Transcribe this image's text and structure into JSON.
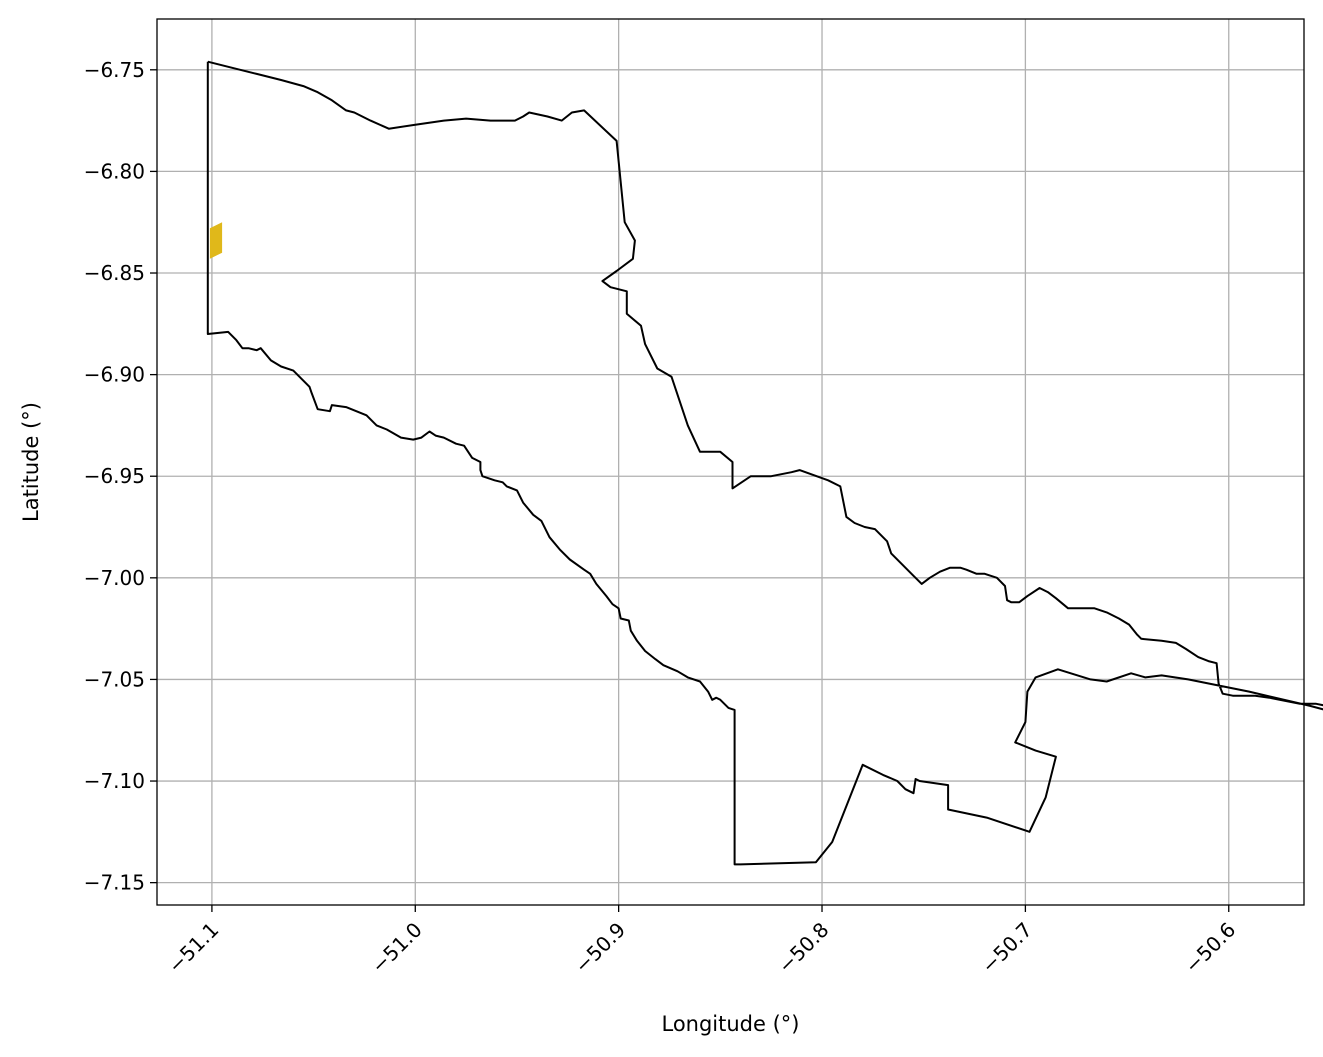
{
  "chart_data": {
    "type": "map",
    "xlabel": "Longitude (°)",
    "ylabel": "Latitude (°)",
    "xlim": [
      -51.127,
      -50.563
    ],
    "ylim": [
      -7.161,
      -6.725
    ],
    "grid": true,
    "x_ticks": [
      -51.1,
      -51.0,
      -50.9,
      -50.8,
      -50.7,
      -50.6
    ],
    "x_tick_labels": [
      "−51.1",
      "−51.0",
      "−50.9",
      "−50.8",
      "−50.7",
      "−50.6"
    ],
    "y_ticks": [
      -6.75,
      -6.8,
      -6.85,
      -6.9,
      -6.95,
      -7.0,
      -7.05,
      -7.1,
      -7.15
    ],
    "y_tick_labels": [
      "−6.75",
      "−6.80",
      "−6.85",
      "−6.90",
      "−6.95",
      "−7.00",
      "−7.05",
      "−7.10",
      "−7.15"
    ],
    "colors": {
      "boundary": "#000000",
      "highlight": "#e0b81a",
      "grid": "#b0b0b0"
    },
    "boundary": [
      [
        -51.102,
        -6.746
      ],
      [
        -51.09,
        -6.749
      ],
      [
        -51.078,
        -6.752
      ],
      [
        -51.066,
        -6.755
      ],
      [
        -51.055,
        -6.758
      ],
      [
        -51.048,
        -6.761
      ],
      [
        -51.041,
        -6.765
      ],
      [
        -51.034,
        -6.77
      ],
      [
        -51.03,
        -6.771
      ],
      [
        -51.022,
        -6.775
      ],
      [
        -51.013,
        -6.779
      ],
      [
        -51.0,
        -6.777
      ],
      [
        -50.986,
        -6.775
      ],
      [
        -50.975,
        -6.774
      ],
      [
        -50.963,
        -6.775
      ],
      [
        -50.951,
        -6.775
      ],
      [
        -50.947,
        -6.773
      ],
      [
        -50.944,
        -6.771
      ],
      [
        -50.935,
        -6.773
      ],
      [
        -50.928,
        -6.775
      ],
      [
        -50.923,
        -6.771
      ],
      [
        -50.917,
        -6.77
      ],
      [
        -50.901,
        -6.785
      ],
      [
        -50.897,
        -6.825
      ],
      [
        -50.892,
        -6.834
      ],
      [
        -50.893,
        -6.843
      ],
      [
        -50.901,
        -6.849
      ],
      [
        -50.908,
        -6.854
      ],
      [
        -50.904,
        -6.857
      ],
      [
        -50.896,
        -6.859
      ],
      [
        -50.896,
        -6.87
      ],
      [
        -50.889,
        -6.876
      ],
      [
        -50.887,
        -6.885
      ],
      [
        -50.881,
        -6.897
      ],
      [
        -50.874,
        -6.901
      ],
      [
        -50.866,
        -6.925
      ],
      [
        -50.86,
        -6.938
      ],
      [
        -50.85,
        -6.938
      ],
      [
        -50.844,
        -6.943
      ],
      [
        -50.844,
        -6.956
      ],
      [
        -50.835,
        -6.95
      ],
      [
        -50.825,
        -6.95
      ],
      [
        -50.815,
        -6.948
      ],
      [
        -50.811,
        -6.947
      ],
      [
        -50.797,
        -6.952
      ],
      [
        -50.791,
        -6.955
      ],
      [
        -50.788,
        -6.97
      ],
      [
        -50.784,
        -6.973
      ],
      [
        -50.779,
        -6.975
      ],
      [
        -50.774,
        -6.976
      ],
      [
        -50.771,
        -6.979
      ],
      [
        -50.768,
        -6.982
      ],
      [
        -50.766,
        -6.988
      ],
      [
        -50.761,
        -6.993
      ],
      [
        -50.755,
        -6.999
      ],
      [
        -50.751,
        -7.003
      ],
      [
        -50.747,
        -7.0
      ],
      [
        -50.742,
        -6.997
      ],
      [
        -50.737,
        -6.995
      ],
      [
        -50.732,
        -6.995
      ],
      [
        -50.729,
        -6.996
      ],
      [
        -50.724,
        -6.998
      ],
      [
        -50.72,
        -6.998
      ],
      [
        -50.714,
        -7.0
      ],
      [
        -50.71,
        -7.004
      ],
      [
        -50.709,
        -7.011
      ],
      [
        -50.707,
        -7.012
      ],
      [
        -50.703,
        -7.012
      ],
      [
        -50.699,
        -7.009
      ],
      [
        -50.693,
        -7.005
      ],
      [
        -50.689,
        -7.007
      ],
      [
        -50.685,
        -7.01
      ],
      [
        -50.679,
        -7.015
      ],
      [
        -50.672,
        -7.015
      ],
      [
        -50.666,
        -7.015
      ],
      [
        -50.66,
        -7.017
      ],
      [
        -50.654,
        -7.02
      ],
      [
        -50.649,
        -7.023
      ],
      [
        -50.645,
        -7.028
      ],
      [
        -50.643,
        -7.03
      ],
      [
        -50.633,
        -7.031
      ],
      [
        -50.626,
        -7.032
      ],
      [
        -50.621,
        -7.035
      ],
      [
        -50.615,
        -7.039
      ],
      [
        -50.61,
        -7.041
      ],
      [
        -50.606,
        -7.042
      ],
      [
        -50.605,
        -7.052
      ],
      [
        -50.603,
        -7.057
      ],
      [
        -50.598,
        -7.058
      ],
      [
        -50.587,
        -7.058
      ],
      [
        -50.58,
        -7.059
      ],
      [
        -50.575,
        -7.06
      ],
      [
        -50.565,
        -7.062
      ],
      [
        -50.557,
        -7.062
      ],
      [
        -50.552,
        -7.063
      ],
      [
        -50.546,
        -7.063
      ],
      [
        -50.54,
        -7.064
      ],
      [
        -50.533,
        -7.065
      ],
      [
        -50.526,
        -7.065
      ],
      [
        -50.521,
        -7.066
      ],
      [
        -50.517,
        -7.07
      ],
      [
        -50.512,
        -7.076
      ],
      [
        -50.53,
        -7.071
      ],
      [
        -50.56,
        -7.063
      ],
      [
        -50.59,
        -7.056
      ],
      [
        -50.62,
        -7.05
      ],
      [
        -50.633,
        -7.048
      ],
      [
        -50.641,
        -7.049
      ],
      [
        -50.648,
        -7.047
      ],
      [
        -50.66,
        -7.051
      ],
      [
        -50.668,
        -7.05
      ],
      [
        -50.684,
        -7.045
      ],
      [
        -50.695,
        -7.049
      ],
      [
        -50.699,
        -7.056
      ],
      [
        -50.7,
        -7.071
      ],
      [
        -50.705,
        -7.081
      ],
      [
        -50.695,
        -7.085
      ],
      [
        -50.685,
        -7.088
      ],
      [
        -50.69,
        -7.108
      ],
      [
        -50.698,
        -7.125
      ],
      [
        -50.719,
        -7.118
      ],
      [
        -50.738,
        -7.114
      ],
      [
        -50.738,
        -7.102
      ],
      [
        -50.752,
        -7.1
      ],
      [
        -50.754,
        -7.099
      ],
      [
        -50.755,
        -7.106
      ],
      [
        -50.759,
        -7.104
      ],
      [
        -50.763,
        -7.1
      ],
      [
        -50.77,
        -7.097
      ],
      [
        -50.78,
        -7.092
      ],
      [
        -50.795,
        -7.13
      ],
      [
        -50.803,
        -7.14
      ],
      [
        -50.84,
        -7.141
      ],
      [
        -50.843,
        -7.141
      ],
      [
        -50.843,
        -7.065
      ],
      [
        -50.846,
        -7.064
      ],
      [
        -50.85,
        -7.06
      ],
      [
        -50.852,
        -7.059
      ],
      [
        -50.854,
        -7.06
      ],
      [
        -50.856,
        -7.056
      ],
      [
        -50.86,
        -7.051
      ],
      [
        -50.866,
        -7.049
      ],
      [
        -50.871,
        -7.046
      ],
      [
        -50.878,
        -7.043
      ],
      [
        -50.882,
        -7.04
      ],
      [
        -50.887,
        -7.036
      ],
      [
        -50.891,
        -7.031
      ],
      [
        -50.894,
        -7.026
      ],
      [
        -50.895,
        -7.021
      ],
      [
        -50.899,
        -7.02
      ],
      [
        -50.9,
        -7.015
      ],
      [
        -50.903,
        -7.013
      ],
      [
        -50.906,
        -7.009
      ],
      [
        -50.911,
        -7.003
      ],
      [
        -50.914,
        -6.998
      ],
      [
        -50.917,
        -6.996
      ],
      [
        -50.924,
        -6.991
      ],
      [
        -50.929,
        -6.986
      ],
      [
        -50.934,
        -6.98
      ],
      [
        -50.938,
        -6.972
      ],
      [
        -50.942,
        -6.969
      ],
      [
        -50.947,
        -6.963
      ],
      [
        -50.95,
        -6.957
      ],
      [
        -50.955,
        -6.955
      ],
      [
        -50.957,
        -6.953
      ],
      [
        -50.961,
        -6.952
      ],
      [
        -50.967,
        -6.95
      ],
      [
        -50.968,
        -6.947
      ],
      [
        -50.968,
        -6.943
      ],
      [
        -50.972,
        -6.941
      ],
      [
        -50.976,
        -6.935
      ],
      [
        -50.98,
        -6.934
      ],
      [
        -50.986,
        -6.931
      ],
      [
        -50.99,
        -6.93
      ],
      [
        -50.993,
        -6.928
      ],
      [
        -50.997,
        -6.931
      ],
      [
        -51.001,
        -6.932
      ],
      [
        -51.007,
        -6.931
      ],
      [
        -51.014,
        -6.927
      ],
      [
        -51.019,
        -6.925
      ],
      [
        -51.024,
        -6.92
      ],
      [
        -51.029,
        -6.918
      ],
      [
        -51.034,
        -6.916
      ],
      [
        -51.041,
        -6.915
      ],
      [
        -51.042,
        -6.918
      ],
      [
        -51.048,
        -6.917
      ],
      [
        -51.051,
        -6.909
      ],
      [
        -51.052,
        -6.906
      ],
      [
        -51.055,
        -6.903
      ],
      [
        -51.06,
        -6.898
      ],
      [
        -51.066,
        -6.896
      ],
      [
        -51.071,
        -6.893
      ],
      [
        -51.076,
        -6.887
      ],
      [
        -51.078,
        -6.888
      ],
      [
        -51.082,
        -6.887
      ],
      [
        -51.085,
        -6.887
      ],
      [
        -51.088,
        -6.883
      ],
      [
        -51.092,
        -6.879
      ],
      [
        -51.102,
        -6.88
      ],
      [
        -51.102,
        -6.746
      ]
    ],
    "highlight_polygon": [
      [
        -51.101,
        -6.828
      ],
      [
        -51.095,
        -6.825
      ],
      [
        -51.095,
        -6.84
      ],
      [
        -51.101,
        -6.843
      ]
    ]
  }
}
